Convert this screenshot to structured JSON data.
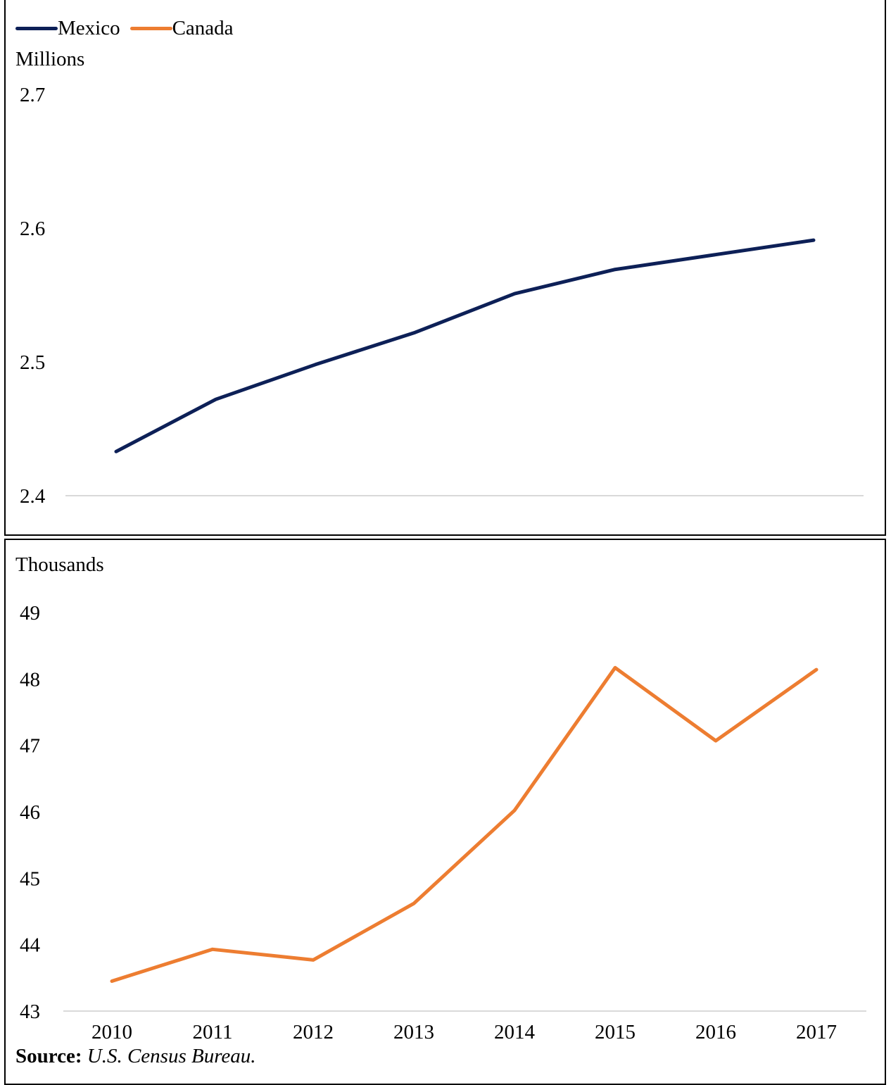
{
  "chart_data": [
    {
      "type": "line",
      "ylabel": "Millions",
      "ylim": [
        2.4,
        2.7
      ],
      "yticks": [
        "2.4",
        "2.5",
        "2.6",
        "2.7"
      ],
      "x": [
        2010,
        2011,
        2012,
        2013,
        2014,
        2015,
        2016,
        2017
      ],
      "series": [
        {
          "name": "Mexico",
          "color": "#0d2057",
          "values": [
            2.433,
            2.472,
            2.498,
            2.522,
            2.551,
            2.569,
            2.58,
            2.591
          ]
        }
      ],
      "legend": {
        "placement": "top-left",
        "entries": [
          "Mexico",
          "Canada"
        ]
      },
      "grid": false
    },
    {
      "type": "line",
      "ylabel": "Thousands",
      "ylim": [
        43,
        49
      ],
      "yticks": [
        "43",
        "44",
        "45",
        "46",
        "47",
        "48",
        "49"
      ],
      "x": [
        2010,
        2011,
        2012,
        2013,
        2014,
        2015,
        2016,
        2017
      ],
      "xticks": [
        "2010",
        "2011",
        "2012",
        "2013",
        "2014",
        "2015",
        "2016",
        "2017"
      ],
      "series": [
        {
          "name": "Canada",
          "color": "#ed7d31",
          "values": [
            43.45,
            43.93,
            43.77,
            44.62,
            46.02,
            48.17,
            47.07,
            48.14
          ]
        }
      ],
      "grid": false
    }
  ],
  "legend": {
    "mexico": "Mexico",
    "canada": "Canada"
  },
  "source": {
    "label": "Source:",
    "text": "U.S. Census Bureau."
  }
}
